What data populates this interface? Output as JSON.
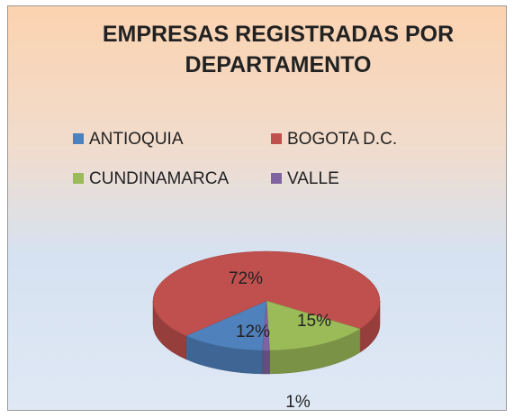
{
  "chart_data": {
    "type": "pie",
    "title": "EMPRESAS REGISTRADAS POR DEPARTAMENTO",
    "categories": [
      "ANTIOQUIA",
      "BOGOTA D.C.",
      "CUNDINAMARCA",
      "VALLE"
    ],
    "values": [
      12,
      72,
      15,
      1
    ],
    "value_labels": [
      "12%",
      "72%",
      "15%",
      "1%"
    ],
    "colors": [
      "#4f81bd",
      "#c0504d",
      "#9bbb59",
      "#8064a2"
    ],
    "legend": "top"
  }
}
